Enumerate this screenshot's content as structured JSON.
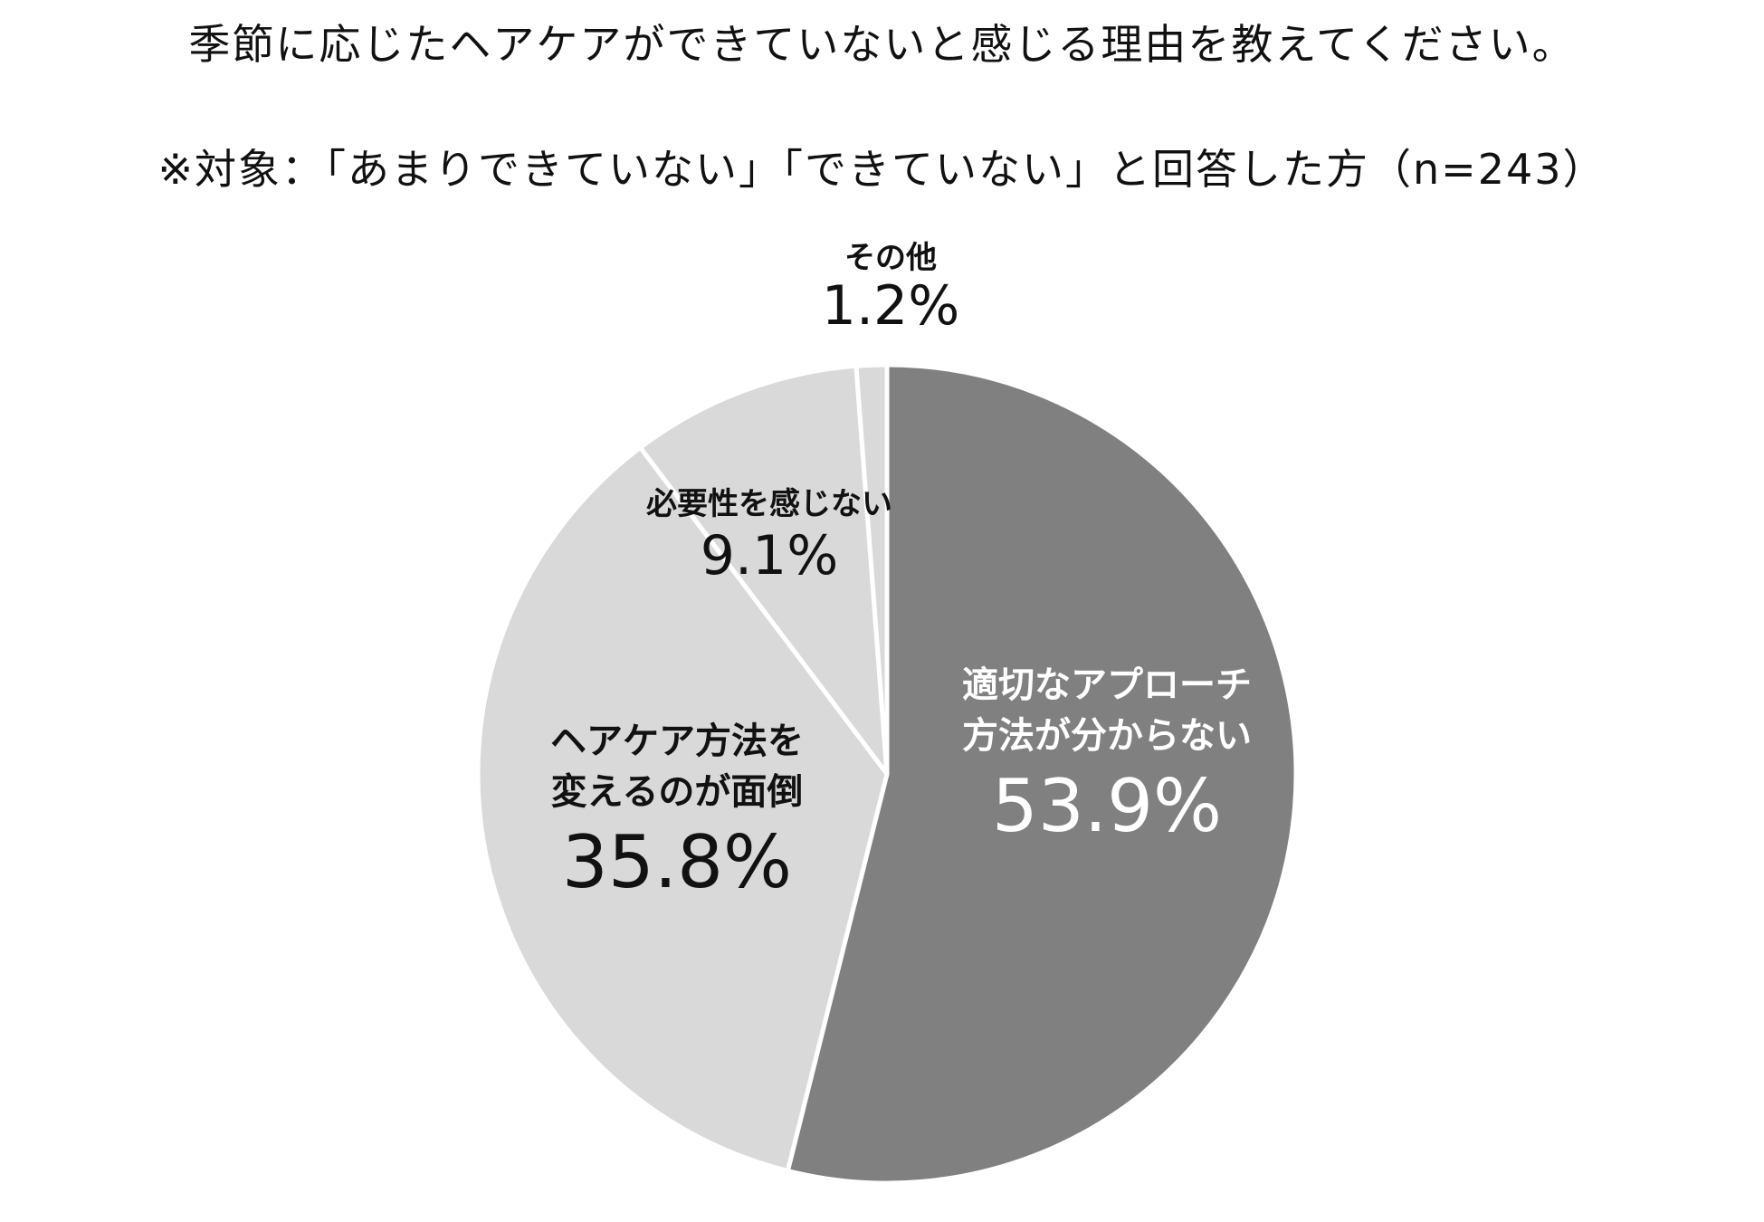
{
  "chart_data": {
    "type": "pie",
    "title": "季節に応じたヘアケアができていないと感じる理由を教えてください。",
    "subtitle": "※対象：「あまりできていない」「できていない」と回答した方（n=243）",
    "slices": [
      {
        "label_lines": [
          "適切なアプローチ",
          "方法が分からない"
        ],
        "value": 53.9,
        "value_label": "53.9%",
        "color": "#808080",
        "text_color": "#ffffff"
      },
      {
        "label_lines": [
          "ヘアケア方法を",
          "変えるのが面倒"
        ],
        "value": 35.8,
        "value_label": "35.8%",
        "color": "#d9d9d9",
        "text_color": "#111111"
      },
      {
        "label_lines": [
          "必要性を感じない"
        ],
        "value": 9.1,
        "value_label": "9.1%",
        "color": "#d9d9d9",
        "text_color": "#111111"
      },
      {
        "label_lines": [
          "その他"
        ],
        "value": 1.2,
        "value_label": "1.2%",
        "color": "#d9d9d9",
        "text_color": "#111111"
      }
    ],
    "start": "12 o'clock",
    "direction": "clockwise",
    "legend": "none"
  }
}
